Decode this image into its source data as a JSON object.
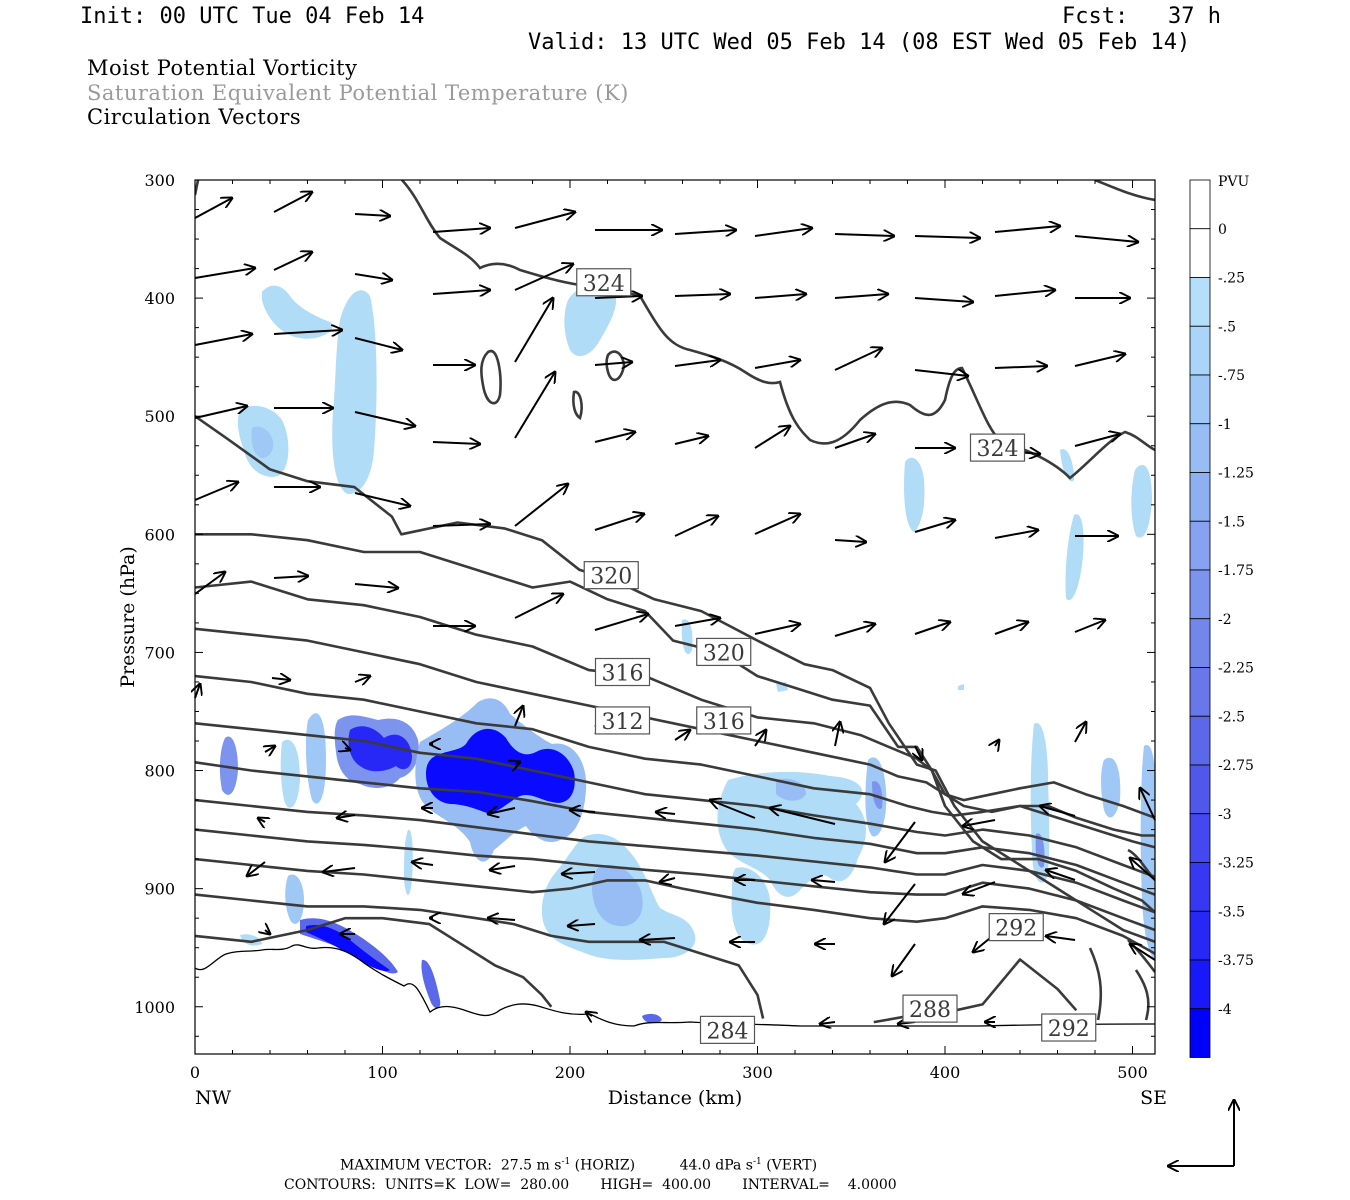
{
  "header": {
    "init": "Init: 00 UTC Tue 04 Feb 14",
    "fcst": "Fcst:   37 h",
    "valid": "Valid: 13 UTC Wed 05 Feb 14 (08 EST Wed 05 Feb 14)"
  },
  "fields": {
    "pv": "Moist Potential Vorticity",
    "theta": "Saturation Equivalent Potential Temperature (K)",
    "vectors": "Circulation Vectors"
  },
  "footer": {
    "max_vector_label": "MAXIMUM VECTOR:",
    "max_horiz_value": "27.5 m s",
    "max_horiz_unit": "(HORIZ)",
    "max_vert_value": "44.0 dPa s",
    "max_vert_unit": "(VERT)",
    "exponent": "-1",
    "contours": "CONTOURS:  UNITS=K  LOW=  280.00       HIGH=  400.00       INTERVAL=    4.0000"
  },
  "colors": {
    "contour": "#3a3a3a",
    "pv_light": "#b0dcf8",
    "pv_dark": "#0000ff"
  },
  "chart_data": {
    "type": "contour",
    "xlabel": "Distance (km)",
    "ylabel": "Pressure (hPa)",
    "x_ticks": [
      "0",
      "100",
      "200",
      "300",
      "400",
      "500"
    ],
    "x_tick_values": [
      0,
      100,
      200,
      300,
      400,
      500
    ],
    "x_end_labels": [
      "NW",
      "SE"
    ],
    "y_ticks": [
      "300",
      "400",
      "500",
      "600",
      "700",
      "800",
      "900",
      "1000"
    ],
    "y_tick_values": [
      300,
      400,
      500,
      600,
      700,
      800,
      900,
      1000
    ],
    "xlim": [
      0,
      512
    ],
    "ylim": [
      300,
      1040
    ],
    "colorbar": {
      "title": "PVU",
      "labels": [
        "0",
        "-.25",
        "-.5",
        "-.75",
        "-1",
        "-1.25",
        "-1.5",
        "-1.75",
        "-2",
        "-2.25",
        "-2.5",
        "-2.75",
        "-3",
        "-3.25",
        "-3.5",
        "-3.75",
        "-4"
      ],
      "colors": [
        "#ffffff",
        "#ffffff",
        "#b4defa",
        "#aad4f8",
        "#a0c8f6",
        "#98bcf4",
        "#8eb0f2",
        "#86a2f0",
        "#7c94ee",
        "#7286ec",
        "#6878ea",
        "#5c68ea",
        "#5058ec",
        "#4448ee",
        "#3638f2",
        "#2828f6",
        "#1818fa",
        "#0000ff"
      ]
    },
    "contour_labels": [
      {
        "text": "324",
        "x": 218,
        "p": 387
      },
      {
        "text": "324",
        "x": 428,
        "p": 527
      },
      {
        "text": "320",
        "x": 222,
        "p": 635
      },
      {
        "text": "320",
        "x": 282,
        "p": 700
      },
      {
        "text": "316",
        "x": 228,
        "p": 717
      },
      {
        "text": "316",
        "x": 282,
        "p": 758
      },
      {
        "text": "312",
        "x": 228,
        "p": 758
      },
      {
        "text": "292",
        "x": 438,
        "p": 933
      },
      {
        "text": "288",
        "x": 392,
        "p": 1002
      },
      {
        "text": "284",
        "x": 284,
        "p": 1020
      },
      {
        "text": "292",
        "x": 466,
        "p": 1018
      }
    ],
    "isentropes": [
      [
        [
          0,
          500
        ],
        [
          18,
          520
        ],
        [
          40,
          545
        ],
        [
          60,
          555
        ],
        [
          85,
          560
        ],
        [
          105,
          585
        ],
        [
          110,
          600
        ],
        [
          140,
          590
        ],
        [
          165,
          595
        ],
        [
          185,
          605
        ],
        [
          205,
          630
        ],
        [
          225,
          640
        ],
        [
          245,
          655
        ],
        [
          270,
          665
        ],
        [
          300,
          690
        ],
        [
          325,
          710
        ],
        [
          340,
          715
        ],
        [
          360,
          730
        ],
        [
          370,
          760
        ],
        [
          385,
          795
        ],
        [
          395,
          800
        ],
        [
          405,
          830
        ],
        [
          420,
          860
        ],
        [
          440,
          880
        ],
        [
          460,
          900
        ],
        [
          480,
          920
        ],
        [
          495,
          935
        ],
        [
          512,
          945
        ]
      ],
      [
        [
          0,
          600
        ],
        [
          30,
          600
        ],
        [
          60,
          605
        ],
        [
          90,
          615
        ],
        [
          120,
          615
        ],
        [
          150,
          630
        ],
        [
          180,
          645
        ],
        [
          200,
          640
        ],
        [
          220,
          655
        ],
        [
          240,
          665
        ],
        [
          255,
          690
        ],
        [
          280,
          700
        ],
        [
          300,
          720
        ],
        [
          320,
          730
        ],
        [
          340,
          740
        ],
        [
          360,
          745
        ],
        [
          375,
          780
        ],
        [
          385,
          780
        ],
        [
          393,
          800
        ],
        [
          400,
          830
        ],
        [
          415,
          860
        ],
        [
          430,
          875
        ],
        [
          450,
          875
        ],
        [
          470,
          885
        ],
        [
          490,
          900
        ],
        [
          505,
          910
        ],
        [
          512,
          920
        ]
      ],
      [
        [
          0,
          645
        ],
        [
          30,
          640
        ],
        [
          60,
          655
        ],
        [
          90,
          660
        ],
        [
          120,
          670
        ],
        [
          150,
          685
        ],
        [
          180,
          695
        ],
        [
          210,
          715
        ],
        [
          240,
          720
        ],
        [
          270,
          740
        ],
        [
          300,
          755
        ],
        [
          330,
          760
        ],
        [
          355,
          770
        ],
        [
          370,
          780
        ],
        [
          385,
          790
        ],
        [
          393,
          800
        ],
        [
          400,
          820
        ],
        [
          410,
          830
        ],
        [
          425,
          835
        ],
        [
          440,
          830
        ],
        [
          455,
          830
        ],
        [
          470,
          840
        ],
        [
          490,
          850
        ],
        [
          505,
          855
        ],
        [
          512,
          855
        ]
      ],
      [
        [
          0,
          680
        ],
        [
          30,
          685
        ],
        [
          60,
          690
        ],
        [
          90,
          700
        ],
        [
          120,
          710
        ],
        [
          150,
          725
        ],
        [
          180,
          735
        ],
        [
          210,
          745
        ],
        [
          240,
          755
        ],
        [
          270,
          765
        ],
        [
          300,
          775
        ],
        [
          330,
          785
        ],
        [
          360,
          795
        ],
        [
          375,
          805
        ],
        [
          390,
          810
        ],
        [
          400,
          820
        ],
        [
          410,
          825
        ],
        [
          425,
          820
        ],
        [
          440,
          815
        ],
        [
          458,
          810
        ],
        [
          475,
          820
        ],
        [
          495,
          830
        ],
        [
          512,
          840
        ]
      ],
      [
        [
          0,
          720
        ],
        [
          30,
          725
        ],
        [
          60,
          735
        ],
        [
          90,
          740
        ],
        [
          120,
          750
        ],
        [
          150,
          760
        ],
        [
          180,
          765
        ],
        [
          210,
          780
        ],
        [
          240,
          790
        ],
        [
          270,
          795
        ],
        [
          300,
          805
        ],
        [
          330,
          815
        ],
        [
          360,
          820
        ],
        [
          380,
          830
        ],
        [
          393,
          835
        ],
        [
          405,
          838
        ],
        [
          420,
          835
        ],
        [
          440,
          830
        ],
        [
          460,
          840
        ],
        [
          480,
          850
        ],
        [
          500,
          860
        ],
        [
          512,
          865
        ]
      ],
      [
        [
          0,
          760
        ],
        [
          30,
          765
        ],
        [
          60,
          770
        ],
        [
          90,
          775
        ],
        [
          120,
          785
        ],
        [
          150,
          790
        ],
        [
          180,
          800
        ],
        [
          210,
          810
        ],
        [
          240,
          820
        ],
        [
          270,
          825
        ],
        [
          300,
          830
        ],
        [
          330,
          838
        ],
        [
          360,
          845
        ],
        [
          385,
          852
        ],
        [
          400,
          855
        ],
        [
          420,
          850
        ],
        [
          445,
          855
        ],
        [
          470,
          865
        ],
        [
          495,
          880
        ],
        [
          512,
          890
        ]
      ],
      [
        [
          0,
          793
        ],
        [
          30,
          800
        ],
        [
          60,
          805
        ],
        [
          90,
          810
        ],
        [
          120,
          815
        ],
        [
          150,
          818
        ],
        [
          180,
          826
        ],
        [
          210,
          835
        ],
        [
          240,
          840
        ],
        [
          270,
          845
        ],
        [
          300,
          850
        ],
        [
          330,
          857
        ],
        [
          360,
          862
        ],
        [
          385,
          870
        ],
        [
          400,
          870
        ],
        [
          420,
          865
        ],
        [
          445,
          870
        ],
        [
          470,
          880
        ],
        [
          495,
          895
        ],
        [
          512,
          905
        ]
      ],
      [
        [
          0,
          825
        ],
        [
          30,
          830
        ],
        [
          60,
          835
        ],
        [
          90,
          838
        ],
        [
          120,
          842
        ],
        [
          150,
          848
        ],
        [
          180,
          854
        ],
        [
          210,
          860
        ],
        [
          240,
          864
        ],
        [
          270,
          868
        ],
        [
          300,
          872
        ],
        [
          330,
          877
        ],
        [
          360,
          882
        ],
        [
          385,
          888
        ],
        [
          400,
          888
        ],
        [
          420,
          880
        ],
        [
          445,
          885
        ],
        [
          470,
          895
        ],
        [
          495,
          910
        ],
        [
          512,
          920
        ]
      ],
      [
        [
          0,
          850
        ],
        [
          30,
          855
        ],
        [
          60,
          860
        ],
        [
          90,
          863
        ],
        [
          120,
          867
        ],
        [
          150,
          872
        ],
        [
          180,
          875
        ],
        [
          210,
          880
        ],
        [
          240,
          884
        ],
        [
          270,
          888
        ],
        [
          300,
          893
        ],
        [
          330,
          898
        ],
        [
          360,
          903
        ],
        [
          385,
          905
        ],
        [
          400,
          905
        ],
        [
          420,
          895
        ],
        [
          445,
          900
        ],
        [
          470,
          910
        ],
        [
          495,
          925
        ],
        [
          512,
          935
        ]
      ],
      [
        [
          0,
          875
        ],
        [
          30,
          880
        ],
        [
          60,
          885
        ],
        [
          90,
          888
        ],
        [
          120,
          893
        ],
        [
          150,
          898
        ],
        [
          180,
          903
        ],
        [
          200,
          900
        ],
        [
          220,
          893
        ],
        [
          240,
          893
        ],
        [
          260,
          900
        ],
        [
          280,
          906
        ],
        [
          300,
          912
        ],
        [
          330,
          918
        ],
        [
          360,
          925
        ],
        [
          385,
          928
        ],
        [
          400,
          925
        ],
        [
          420,
          915
        ],
        [
          445,
          918
        ],
        [
          470,
          925
        ],
        [
          495,
          940
        ],
        [
          512,
          955
        ]
      ],
      [
        [
          0,
          905
        ],
        [
          30,
          910
        ],
        [
          60,
          915
        ],
        [
          90,
          915
        ],
        [
          120,
          918
        ],
        [
          150,
          925
        ],
        [
          170,
          930
        ],
        [
          190,
          940
        ],
        [
          210,
          945
        ],
        [
          230,
          945
        ],
        [
          250,
          945
        ],
        [
          270,
          955
        ],
        [
          290,
          965
        ],
        [
          300,
          990
        ],
        [
          303,
          1010
        ]
      ],
      [
        [
          0,
          940
        ],
        [
          30,
          945
        ],
        [
          60,
          935
        ],
        [
          80,
          925
        ],
        [
          100,
          925
        ],
        [
          125,
          930
        ],
        [
          145,
          950
        ],
        [
          160,
          965
        ],
        [
          175,
          975
        ],
        [
          185,
          990
        ],
        [
          190,
          1000
        ]
      ],
      [
        [
          362,
          1013
        ],
        [
          380,
          1008
        ],
        [
          400,
          1005
        ],
        [
          420,
          998
        ],
        [
          440,
          960
        ],
        [
          460,
          985
        ],
        [
          470,
          1003
        ]
      ]
    ]
  }
}
